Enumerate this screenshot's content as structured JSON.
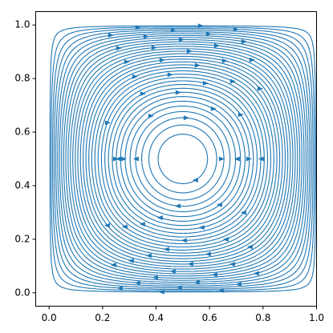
{
  "chart_data": {
    "type": "streamplot",
    "color": "#1f77b4",
    "xlim": [
      -0.05,
      1.0
    ],
    "ylim": [
      -0.05,
      1.05
    ],
    "xticks": [
      {
        "value": 0,
        "label": "0.0"
      },
      0.2,
      0.4,
      0.6,
      0.8,
      {
        "value": 1,
        "label": "1.0"
      }
    ],
    "yticks": [
      {
        "value": 0,
        "label": "0.0"
      },
      0.2,
      0.4,
      0.6,
      0.8,
      {
        "value": 1,
        "label": "1.0"
      }
    ]
  }
}
